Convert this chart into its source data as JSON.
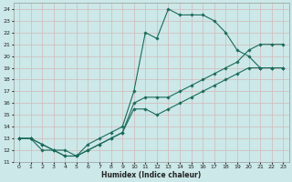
{
  "xlabel": "Humidex (Indice chaleur)",
  "bg_color": "#cce8e8",
  "line_color": "#1a6b5a",
  "grid_color": "#b0d0d0",
  "xlim": [
    -0.5,
    23.5
  ],
  "ylim": [
    11,
    24.5
  ],
  "xticks": [
    0,
    1,
    2,
    3,
    4,
    5,
    6,
    7,
    8,
    9,
    10,
    11,
    12,
    13,
    14,
    15,
    16,
    17,
    18,
    19,
    20,
    21,
    22,
    23
  ],
  "yticks": [
    11,
    12,
    13,
    14,
    15,
    16,
    17,
    18,
    19,
    20,
    21,
    22,
    23,
    24
  ],
  "line1_x": [
    0,
    1,
    2,
    3,
    4,
    5,
    6,
    7,
    8,
    9,
    10,
    11,
    12,
    13,
    14,
    15,
    16,
    17,
    18,
    19,
    20,
    21,
    22,
    23
  ],
  "line1_y": [
    13,
    13,
    12,
    12,
    12,
    11.5,
    12.5,
    13,
    13.5,
    14,
    17,
    22,
    21.5,
    24,
    23.5,
    23.5,
    23.5,
    23,
    22,
    20.5,
    20,
    19,
    19,
    19
  ],
  "line2_x": [
    0,
    1,
    2,
    3,
    4,
    5,
    6,
    7,
    8,
    9,
    10,
    11,
    12,
    13,
    14,
    15,
    16,
    17,
    18,
    19,
    20,
    21,
    22,
    23
  ],
  "line2_y": [
    13,
    13,
    12.5,
    12,
    11.5,
    11.5,
    12,
    12.5,
    13,
    13.5,
    16,
    16.5,
    16.5,
    16.5,
    17,
    17.5,
    18,
    18.5,
    19,
    19.5,
    20.5,
    21,
    21,
    21
  ],
  "line3_x": [
    0,
    1,
    2,
    3,
    4,
    5,
    6,
    7,
    8,
    9,
    10,
    11,
    12,
    13,
    14,
    15,
    16,
    17,
    18,
    19,
    20,
    21,
    22,
    23
  ],
  "line3_y": [
    13,
    13,
    12.5,
    12,
    11.5,
    11.5,
    12,
    12.5,
    13,
    13.5,
    15.5,
    15.5,
    15,
    15.5,
    16,
    16.5,
    17,
    17.5,
    18,
    18.5,
    19,
    19,
    19,
    19
  ]
}
